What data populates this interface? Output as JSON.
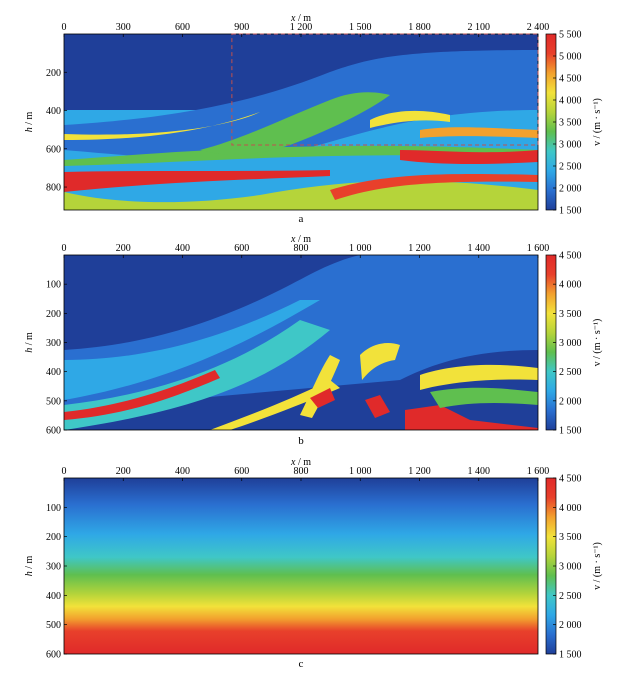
{
  "figure": {
    "panels": [
      "a",
      "b",
      "c"
    ]
  },
  "chart_data": [
    {
      "type": "heatmap",
      "panel_label": "a",
      "description_kind": "velocity model",
      "xlabel_var": "x",
      "xlabel_unit": " / m",
      "ylabel_var": "h",
      "ylabel_unit": " / m",
      "xlim": [
        0,
        2400
      ],
      "ylim": [
        0,
        920
      ],
      "x_ticks": [
        0,
        300,
        600,
        900,
        1200,
        1500,
        1800,
        2100,
        2400
      ],
      "x_tick_labels": [
        "0",
        "300",
        "600",
        "900",
        "1 200",
        "1 500",
        "1 800",
        "2 100",
        "2 400"
      ],
      "y_ticks": [
        200,
        400,
        600,
        800
      ],
      "y_tick_labels": [
        "200",
        "400",
        "600",
        "800"
      ],
      "colorbar": {
        "label": "v / (m · s⁻¹)",
        "min": 1500,
        "max": 5500,
        "ticks": [
          1500,
          2000,
          2500,
          3000,
          3500,
          4000,
          4500,
          5000,
          5500
        ],
        "tick_labels": [
          "1 500",
          "2 000",
          "2 500",
          "3 000",
          "3 500",
          "4 000",
          "4 500",
          "5 000",
          "5 500"
        ]
      },
      "dashed_box": {
        "x": [
          850,
          2400
        ],
        "h": [
          0,
          580
        ],
        "color": "#c0504d"
      }
    },
    {
      "type": "heatmap",
      "panel_label": "b",
      "description_kind": "velocity model",
      "xlabel_var": "x",
      "xlabel_unit": " / m",
      "ylabel_var": "h",
      "ylabel_unit": " / m",
      "xlim": [
        0,
        1600
      ],
      "ylim": [
        0,
        600
      ],
      "x_ticks": [
        0,
        200,
        400,
        600,
        800,
        1000,
        1200,
        1400,
        1600
      ],
      "x_tick_labels": [
        "0",
        "200",
        "400",
        "600",
        "800",
        "1 000",
        "1 200",
        "1 400",
        "1 600"
      ],
      "y_ticks": [
        100,
        200,
        300,
        400,
        500,
        600
      ],
      "y_tick_labels": [
        "100",
        "200",
        "300",
        "400",
        "500",
        "600"
      ],
      "colorbar": {
        "label": "v / (m · s⁻¹)",
        "min": 1500,
        "max": 4500,
        "ticks": [
          1500,
          2000,
          2500,
          3000,
          3500,
          4000,
          4500
        ],
        "tick_labels": [
          "1 500",
          "2 000",
          "2 500",
          "3 000",
          "3 500",
          "4 000",
          "4 500"
        ]
      }
    },
    {
      "type": "heatmap",
      "panel_label": "c",
      "description_kind": "linear gradient velocity model",
      "xlabel_var": "x",
      "xlabel_unit": " / m",
      "ylabel_var": "h",
      "ylabel_unit": " / m",
      "xlim": [
        0,
        1600
      ],
      "ylim": [
        0,
        600
      ],
      "x_ticks": [
        0,
        200,
        400,
        600,
        800,
        1000,
        1200,
        1400,
        1600
      ],
      "x_tick_labels": [
        "0",
        "200",
        "400",
        "600",
        "800",
        "1 000",
        "1 200",
        "1 400",
        "1 600"
      ],
      "y_ticks": [
        100,
        200,
        300,
        400,
        500,
        600
      ],
      "y_tick_labels": [
        "100",
        "200",
        "300",
        "400",
        "500",
        "600"
      ],
      "gradient": {
        "v_top": 1500,
        "v_bottom": 4500
      },
      "colorbar": {
        "label": "v / (m · s⁻¹)",
        "min": 1500,
        "max": 4500,
        "ticks": [
          1500,
          2000,
          2500,
          3000,
          3500,
          4000,
          4500
        ],
        "tick_labels": [
          "1 500",
          "2 000",
          "2 500",
          "3 000",
          "3 500",
          "4 000",
          "4 500"
        ]
      }
    }
  ],
  "colormap": [
    "#1f3f99",
    "#2a6fd0",
    "#2fa8e6",
    "#3fc7c7",
    "#5fbf4f",
    "#b5d43a",
    "#f2e23a",
    "#f2a12e",
    "#e8402b",
    "#e02a2a"
  ]
}
